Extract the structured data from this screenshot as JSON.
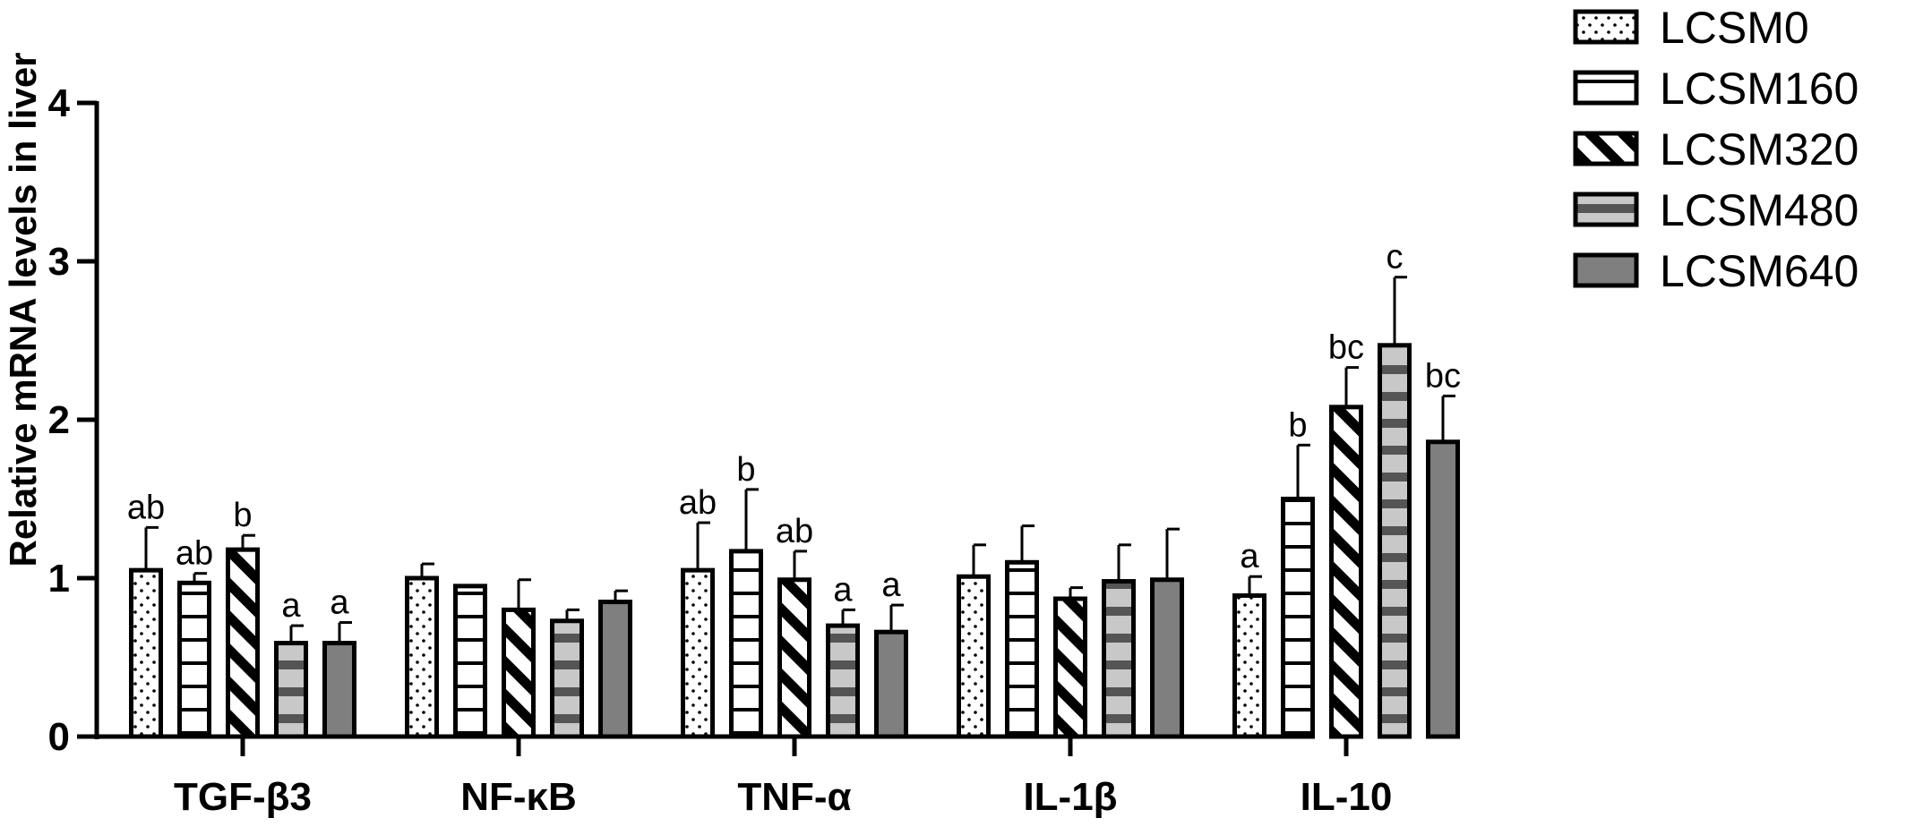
{
  "chart_data": {
    "type": "bar",
    "ylabel": "Relative mRNA levels in liver",
    "xlabel": "",
    "ylim": [
      0,
      4
    ],
    "yticks": [
      0,
      1,
      2,
      3,
      4
    ],
    "categories": [
      "TGF-β3",
      "NF-κB",
      "TNF-α",
      "IL-1β",
      "IL-10"
    ],
    "legend_position": "top-right",
    "series": [
      {
        "name": "LCSM0",
        "pattern": "dots",
        "values": [
          1.05,
          1.0,
          1.05,
          1.01,
          0.89
        ],
        "errors": [
          0.27,
          0.09,
          0.3,
          0.2,
          0.12
        ],
        "labels": [
          "ab",
          "",
          "ab",
          "",
          "a"
        ]
      },
      {
        "name": "LCSM160",
        "pattern": "horizontal-lines",
        "values": [
          0.97,
          0.95,
          1.17,
          1.1,
          1.5
        ],
        "errors": [
          0.06,
          0.0,
          0.39,
          0.23,
          0.34
        ],
        "labels": [
          "ab",
          "",
          "b",
          "",
          "b"
        ]
      },
      {
        "name": "LCSM320",
        "pattern": "diagonal-stripes",
        "values": [
          1.18,
          0.8,
          0.99,
          0.87,
          2.08
        ],
        "errors": [
          0.09,
          0.19,
          0.18,
          0.07,
          0.25
        ],
        "labels": [
          "b",
          "",
          "ab",
          "",
          "bc"
        ]
      },
      {
        "name": "LCSM480",
        "pattern": "gray-bands",
        "values": [
          0.59,
          0.73,
          0.7,
          0.98,
          2.47
        ],
        "errors": [
          0.11,
          0.07,
          0.1,
          0.23,
          0.43
        ],
        "labels": [
          "a",
          "",
          "a",
          "",
          "c"
        ]
      },
      {
        "name": "LCSM640",
        "pattern": "solid-gray",
        "values": [
          0.59,
          0.85,
          0.66,
          0.99,
          1.86
        ],
        "errors": [
          0.13,
          0.07,
          0.17,
          0.32,
          0.29
        ],
        "labels": [
          "a",
          "",
          "a",
          "",
          "bc"
        ]
      }
    ],
    "colors": {
      "stroke": "#000000",
      "gray_fill": "#7f7f7f",
      "light_gray": "#c8c8c8",
      "dark_band": "#555555"
    }
  }
}
